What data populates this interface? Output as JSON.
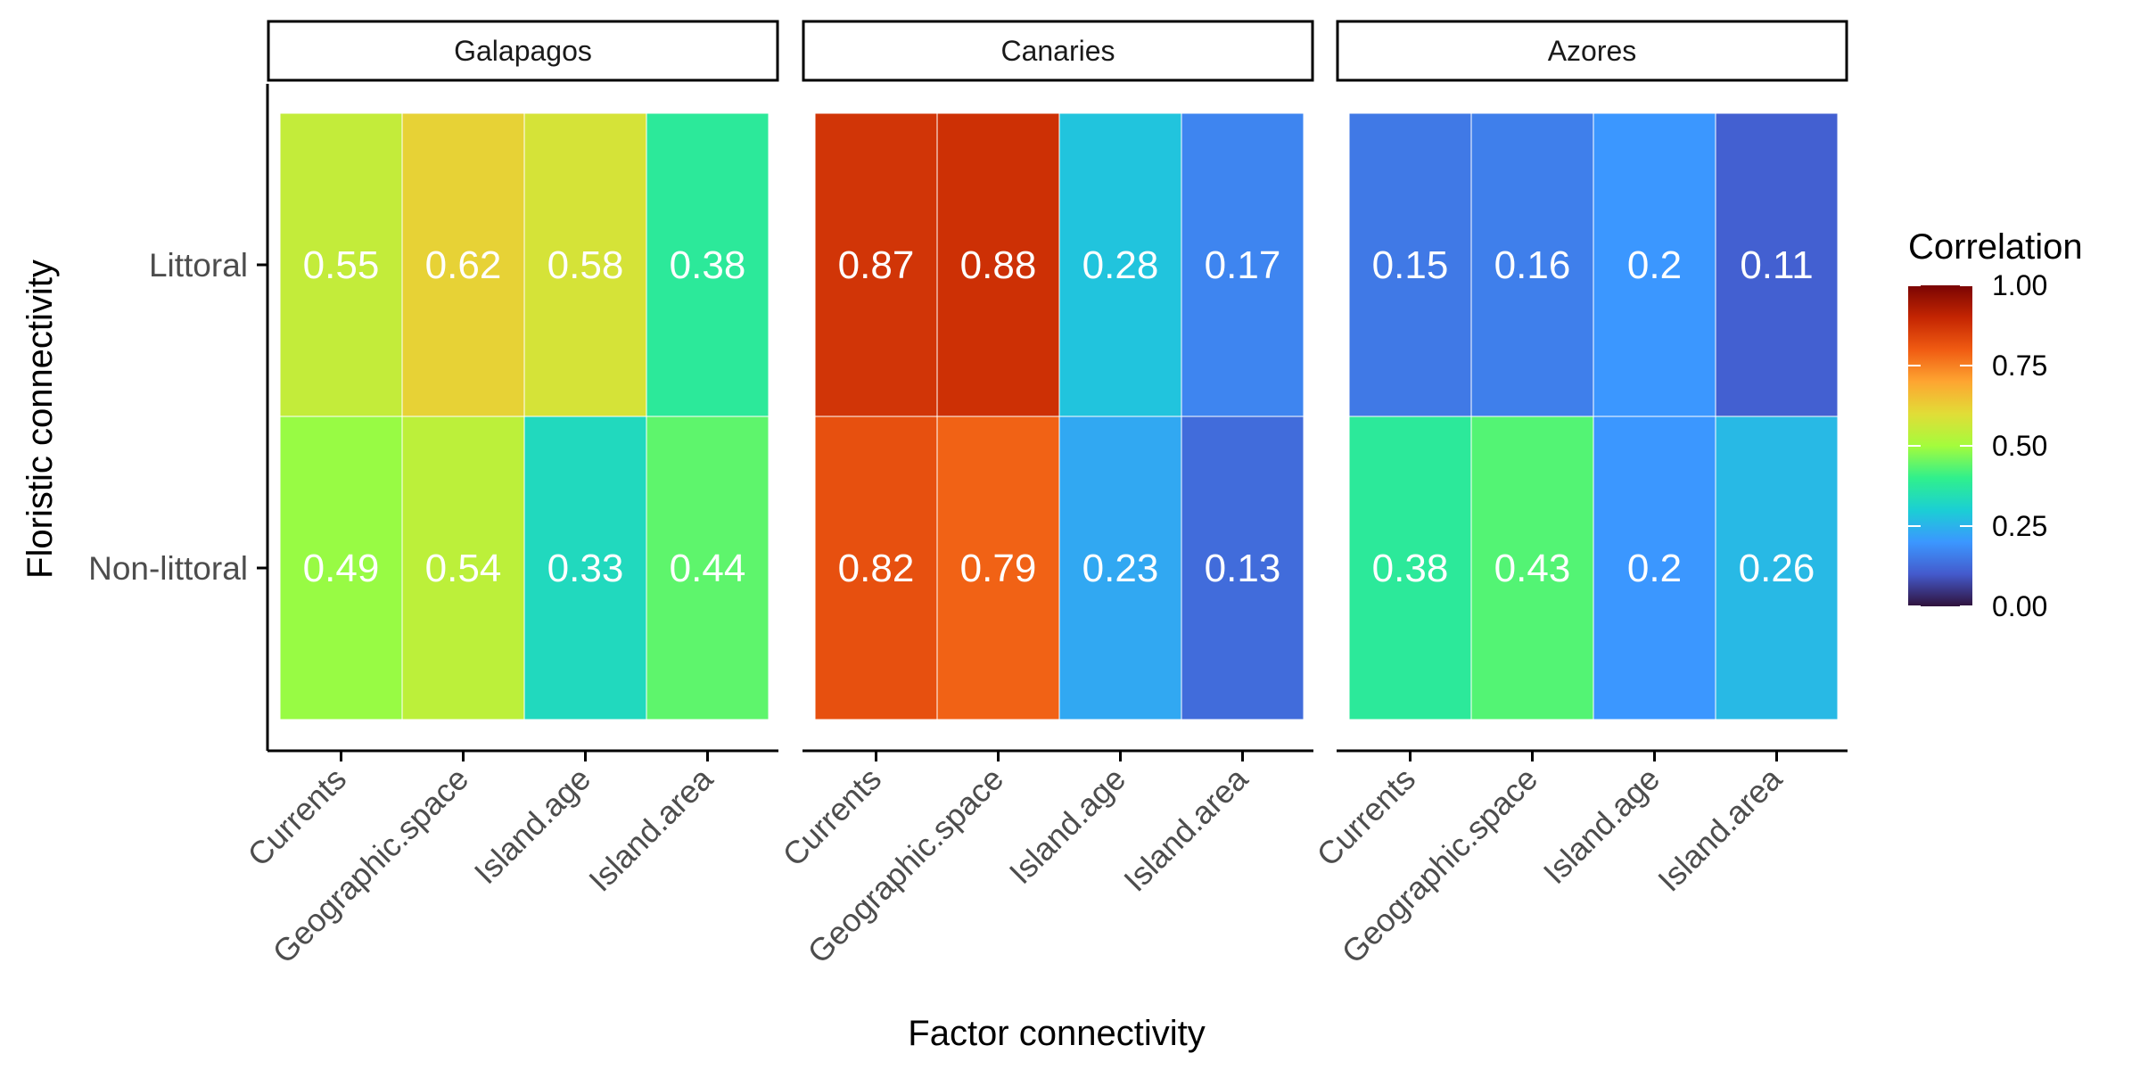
{
  "chart_data": {
    "type": "heatmap",
    "facets": [
      "Galapagos",
      "Canaries",
      "Azores"
    ],
    "x_categories": [
      "Currents",
      "Geographic.space",
      "Island.age",
      "Island.area"
    ],
    "y_categories": [
      "Littoral",
      "Non-littoral"
    ],
    "values": {
      "Galapagos": [
        [
          0.55,
          0.62,
          0.58,
          0.38
        ],
        [
          0.49,
          0.54,
          0.33,
          0.44
        ]
      ],
      "Canaries": [
        [
          0.87,
          0.88,
          0.28,
          0.17
        ],
        [
          0.82,
          0.79,
          0.23,
          0.13
        ]
      ],
      "Azores": [
        [
          0.15,
          0.16,
          0.2,
          0.11
        ],
        [
          0.38,
          0.43,
          0.2,
          0.26
        ]
      ]
    },
    "labels": {
      "Galapagos": [
        [
          "0.55",
          "0.62",
          "0.58",
          "0.38"
        ],
        [
          "0.49",
          "0.54",
          "0.33",
          "0.44"
        ]
      ],
      "Canaries": [
        [
          "0.87",
          "0.88",
          "0.28",
          "0.17"
        ],
        [
          "0.82",
          "0.79",
          "0.23",
          "0.13"
        ]
      ],
      "Azores": [
        [
          "0.15",
          "0.16",
          "0.2",
          "0.11"
        ],
        [
          "0.38",
          "0.43",
          "0.2",
          "0.26"
        ]
      ]
    },
    "xlabel": "Factor connectivity",
    "ylabel": "Floristic connectivity",
    "legend": {
      "title": "Correlation",
      "position": "right",
      "range": [
        0,
        1
      ],
      "ticks": [
        0,
        0.25,
        0.5,
        0.75,
        1
      ],
      "tick_labels": [
        "0.00",
        "0.25",
        "0.50",
        "0.75",
        "1.00"
      ],
      "colormap": "turbo"
    },
    "grid": false
  },
  "colors": {
    "background": "#ffffff",
    "axis": "#000000",
    "tick_label": "#4d4d4d",
    "cell_text": "#ffffff",
    "cell_border": "#ffffff"
  }
}
